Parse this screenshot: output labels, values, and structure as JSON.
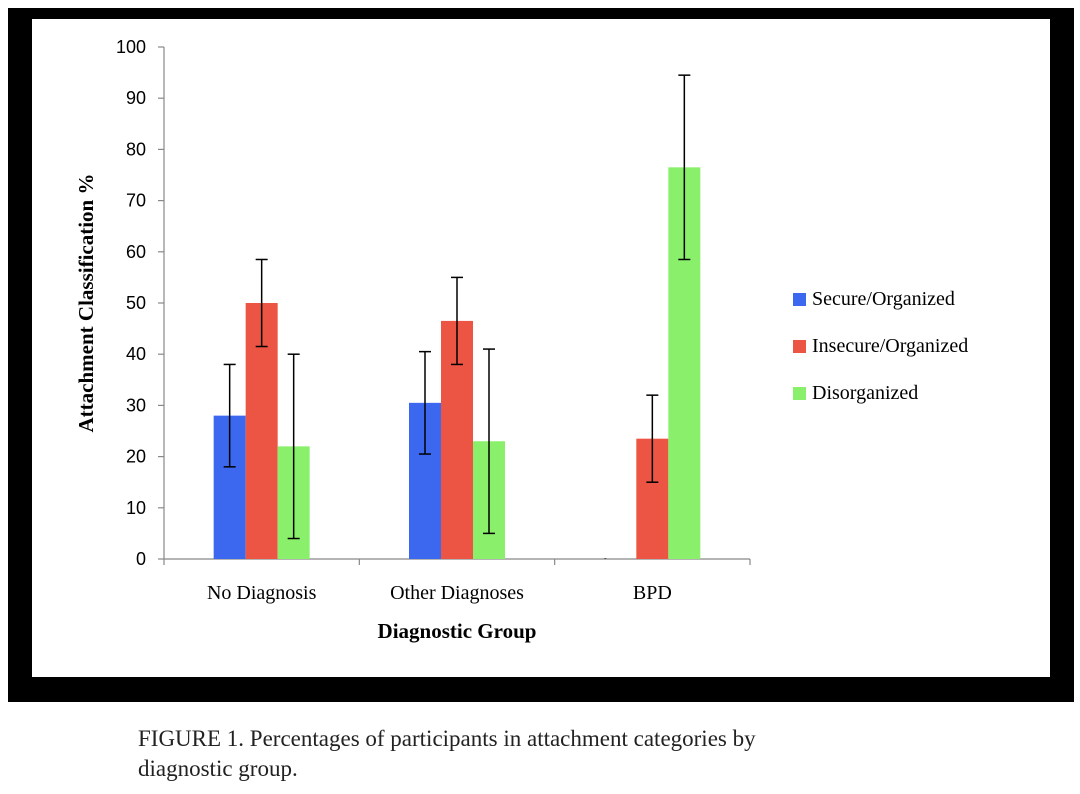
{
  "chart_data": {
    "type": "bar",
    "title": "",
    "xlabel": "Diagnostic Group",
    "ylabel": "Attachment Classification %",
    "ylim": [
      0,
      100
    ],
    "yticks": [
      0,
      10,
      20,
      30,
      40,
      50,
      60,
      70,
      80,
      90,
      100
    ],
    "grid": false,
    "legend_position": "right",
    "categories": [
      "No Diagnosis",
      "Other Diagnoses",
      "BPD"
    ],
    "series": [
      {
        "name": "Secure/Organized",
        "color": "#3c68f0",
        "values": [
          28,
          30.5,
          0
        ],
        "error": [
          10,
          10,
          0
        ]
      },
      {
        "name": "Insecure/Organized",
        "color": "#ec5444",
        "values": [
          50,
          46.5,
          23.5
        ],
        "error": [
          8.5,
          8.5,
          8.5
        ]
      },
      {
        "name": "Disorganized",
        "color": "#8af06c",
        "values": [
          22,
          23,
          76.5
        ],
        "error": [
          18,
          18,
          18
        ]
      }
    ]
  },
  "caption": {
    "line1": "FIGURE 1. Percentages of participants in attachment categories by",
    "line2": "diagnostic group."
  }
}
